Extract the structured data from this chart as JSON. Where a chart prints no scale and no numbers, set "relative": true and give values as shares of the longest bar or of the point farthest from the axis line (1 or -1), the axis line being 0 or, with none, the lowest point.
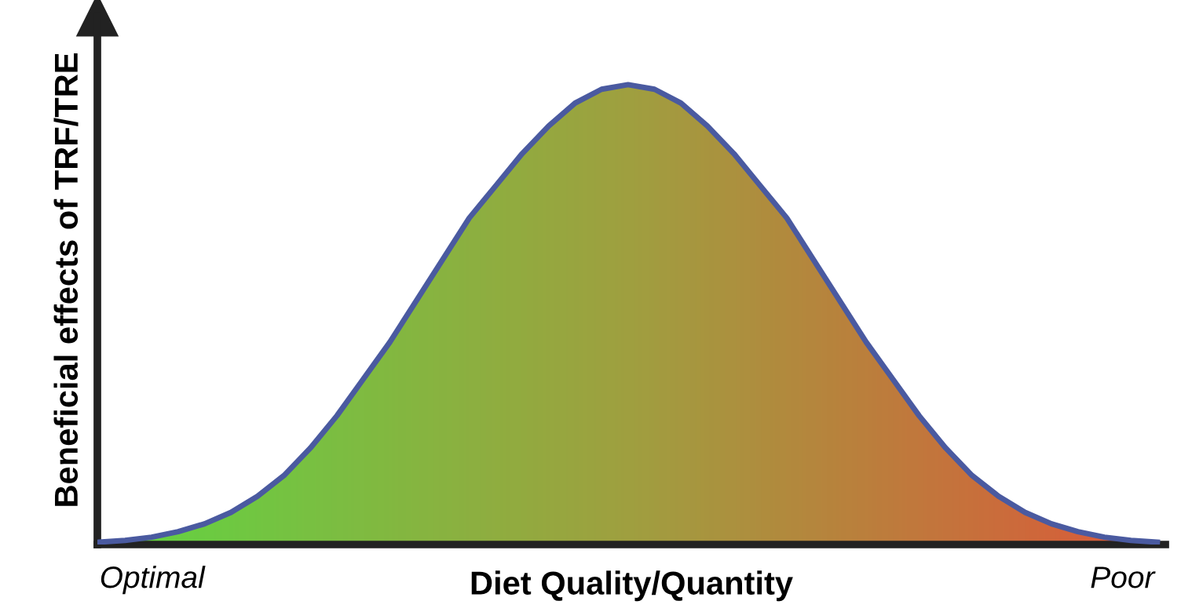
{
  "chart_data": {
    "type": "area",
    "relative": true,
    "xlabel": "Diet Quality/Quantity",
    "ylabel": "Beneficial effects of TRF/TRE",
    "annotations": [
      "Optimal",
      "Poor"
    ],
    "categories": [
      null,
      null,
      null,
      null,
      null,
      null,
      null,
      null,
      null,
      null,
      null,
      null,
      null,
      null,
      null,
      null,
      null,
      null,
      null,
      null,
      null,
      null,
      null,
      null,
      null,
      null,
      null,
      null,
      null,
      null,
      null,
      null,
      null,
      null,
      null,
      null,
      null,
      null,
      null,
      null,
      null
    ],
    "colors": [
      "#44ee44",
      "#a0a040",
      "#f83838"
    ],
    "series": [
      {
        "color": "#a0a040",
        "values": [
          0.005,
          0.009,
          0.016,
          0.028,
          0.045,
          0.07,
          0.105,
          0.15,
          0.21,
          0.28,
          0.36,
          0.44,
          0.53,
          0.62,
          0.71,
          0.78,
          0.85,
          0.91,
          0.96,
          0.99,
          1.0,
          0.99,
          0.96,
          0.91,
          0.85,
          0.78,
          0.71,
          0.62,
          0.53,
          0.44,
          0.36,
          0.28,
          0.21,
          0.15,
          0.105,
          0.07,
          0.045,
          0.028,
          0.016,
          0.009,
          0.005
        ]
      },
      {
        "type": "line",
        "color": "#4a5aa0",
        "values": [
          0.005,
          0.009,
          0.016,
          0.028,
          0.045,
          0.07,
          0.105,
          0.15,
          0.21,
          0.28,
          0.36,
          0.44,
          0.53,
          0.62,
          0.71,
          0.78,
          0.85,
          0.91,
          0.96,
          0.99,
          1.0,
          0.99,
          0.96,
          0.91,
          0.85,
          0.78,
          0.71,
          0.62,
          0.53,
          0.44,
          0.36,
          0.28,
          0.21,
          0.15,
          0.105,
          0.07,
          0.045,
          0.028,
          0.016,
          0.009,
          0.005
        ]
      }
    ],
    "grid": false,
    "legend": false
  }
}
